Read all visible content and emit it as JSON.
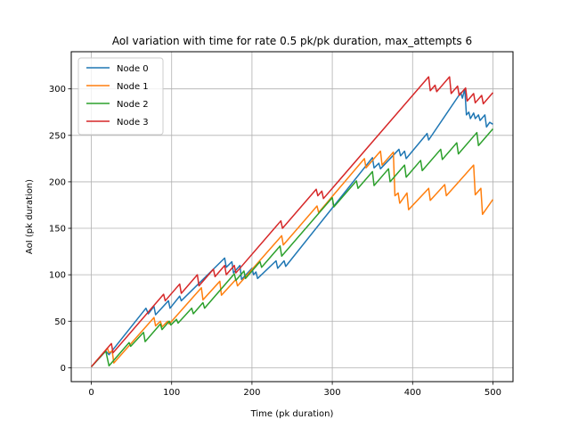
{
  "chart_data": {
    "type": "line",
    "title": "AoI variation with time for rate 0.5 pk/pk duration, max_attempts 6",
    "xlabel": "Time (pk duration)",
    "ylabel": "AoI (pk duration)",
    "xlim": [
      -25,
      525
    ],
    "ylim": [
      -15,
      340
    ],
    "xticks": [
      0,
      100,
      200,
      300,
      400,
      500
    ],
    "yticks": [
      0,
      50,
      100,
      150,
      200,
      250,
      300
    ],
    "grid": true,
    "legend_position": "top-left",
    "series": [
      {
        "name": "Node 0",
        "color": "#1f77b4",
        "points": [
          [
            0,
            1
          ],
          [
            18,
            18
          ],
          [
            22,
            14
          ],
          [
            68,
            64
          ],
          [
            71,
            58
          ],
          [
            78,
            66
          ],
          [
            80,
            57
          ],
          [
            96,
            72
          ],
          [
            98,
            64
          ],
          [
            110,
            77
          ],
          [
            112,
            72
          ],
          [
            166,
            118
          ],
          [
            168,
            108
          ],
          [
            175,
            114
          ],
          [
            177,
            102
          ],
          [
            178,
            103
          ],
          [
            185,
            110
          ],
          [
            187,
            95
          ],
          [
            200,
            107
          ],
          [
            202,
            100
          ],
          [
            205,
            103
          ],
          [
            207,
            96
          ],
          [
            230,
            115
          ],
          [
            232,
            107
          ],
          [
            240,
            115
          ],
          [
            242,
            109
          ],
          [
            350,
            226
          ],
          [
            352,
            215
          ],
          [
            358,
            220
          ],
          [
            360,
            214
          ],
          [
            383,
            235
          ],
          [
            385,
            228
          ],
          [
            390,
            233
          ],
          [
            392,
            225
          ],
          [
            418,
            252
          ],
          [
            420,
            245
          ],
          [
            460,
            296
          ],
          [
            462,
            290
          ],
          [
            465,
            300
          ],
          [
            467,
            272
          ],
          [
            470,
            275
          ],
          [
            472,
            268
          ],
          [
            476,
            274
          ],
          [
            478,
            268
          ],
          [
            482,
            272
          ],
          [
            484,
            266
          ],
          [
            490,
            272
          ],
          [
            492,
            259
          ],
          [
            496,
            264
          ],
          [
            500,
            262
          ]
        ]
      },
      {
        "name": "Node 1",
        "color": "#ff7f0e",
        "points": [
          [
            0,
            1
          ],
          [
            20,
            21
          ],
          [
            22,
            16
          ],
          [
            26,
            18
          ],
          [
            28,
            5
          ],
          [
            78,
            54
          ],
          [
            80,
            45
          ],
          [
            86,
            50
          ],
          [
            88,
            44
          ],
          [
            95,
            50
          ],
          [
            97,
            47
          ],
          [
            137,
            86
          ],
          [
            139,
            73
          ],
          [
            160,
            93
          ],
          [
            162,
            78
          ],
          [
            180,
            95
          ],
          [
            182,
            88
          ],
          [
            237,
            142
          ],
          [
            239,
            132
          ],
          [
            281,
            174
          ],
          [
            283,
            167
          ],
          [
            340,
            225
          ],
          [
            342,
            215
          ],
          [
            360,
            233
          ],
          [
            362,
            218
          ],
          [
            376,
            232
          ],
          [
            378,
            185
          ],
          [
            382,
            188
          ],
          [
            384,
            177
          ],
          [
            393,
            188
          ],
          [
            395,
            170
          ],
          [
            420,
            193
          ],
          [
            422,
            180
          ],
          [
            440,
            197
          ],
          [
            442,
            185
          ],
          [
            476,
            218
          ],
          [
            478,
            186
          ],
          [
            485,
            193
          ],
          [
            487,
            165
          ],
          [
            500,
            181
          ]
        ]
      },
      {
        "name": "Node 2",
        "color": "#2ca02c",
        "points": [
          [
            0,
            1
          ],
          [
            18,
            18
          ],
          [
            22,
            2
          ],
          [
            47,
            27
          ],
          [
            49,
            23
          ],
          [
            65,
            38
          ],
          [
            67,
            28
          ],
          [
            86,
            47
          ],
          [
            88,
            41
          ],
          [
            97,
            50
          ],
          [
            99,
            46
          ],
          [
            106,
            52
          ],
          [
            108,
            48
          ],
          [
            125,
            64
          ],
          [
            127,
            58
          ],
          [
            139,
            70
          ],
          [
            141,
            64
          ],
          [
            178,
            101
          ],
          [
            180,
            94
          ],
          [
            190,
            104
          ],
          [
            192,
            96
          ],
          [
            210,
            114
          ],
          [
            212,
            108
          ],
          [
            235,
            131
          ],
          [
            237,
            120
          ],
          [
            300,
            183
          ],
          [
            302,
            173
          ],
          [
            330,
            201
          ],
          [
            332,
            193
          ],
          [
            350,
            211
          ],
          [
            352,
            196
          ],
          [
            370,
            214
          ],
          [
            372,
            200
          ],
          [
            390,
            218
          ],
          [
            392,
            205
          ],
          [
            410,
            223
          ],
          [
            412,
            212
          ],
          [
            435,
            235
          ],
          [
            437,
            224
          ],
          [
            455,
            242
          ],
          [
            457,
            230
          ],
          [
            480,
            253
          ],
          [
            482,
            239
          ],
          [
            500,
            257
          ]
        ]
      },
      {
        "name": "Node 3",
        "color": "#d62728",
        "points": [
          [
            0,
            1
          ],
          [
            25,
            26
          ],
          [
            27,
            16
          ],
          [
            90,
            79
          ],
          [
            92,
            72
          ],
          [
            110,
            90
          ],
          [
            112,
            80
          ],
          [
            132,
            100
          ],
          [
            134,
            88
          ],
          [
            152,
            106
          ],
          [
            154,
            98
          ],
          [
            166,
            110
          ],
          [
            168,
            100
          ],
          [
            178,
            110
          ],
          [
            180,
            102
          ],
          [
            236,
            158
          ],
          [
            238,
            150
          ],
          [
            280,
            192
          ],
          [
            282,
            185
          ],
          [
            287,
            190
          ],
          [
            289,
            182
          ],
          [
            420,
            313
          ],
          [
            422,
            298
          ],
          [
            428,
            304
          ],
          [
            430,
            297
          ],
          [
            446,
            313
          ],
          [
            448,
            295
          ],
          [
            456,
            303
          ],
          [
            458,
            293
          ],
          [
            466,
            301
          ],
          [
            468,
            287
          ],
          [
            476,
            295
          ],
          [
            478,
            285
          ],
          [
            486,
            293
          ],
          [
            488,
            284
          ],
          [
            500,
            296
          ]
        ]
      }
    ]
  }
}
